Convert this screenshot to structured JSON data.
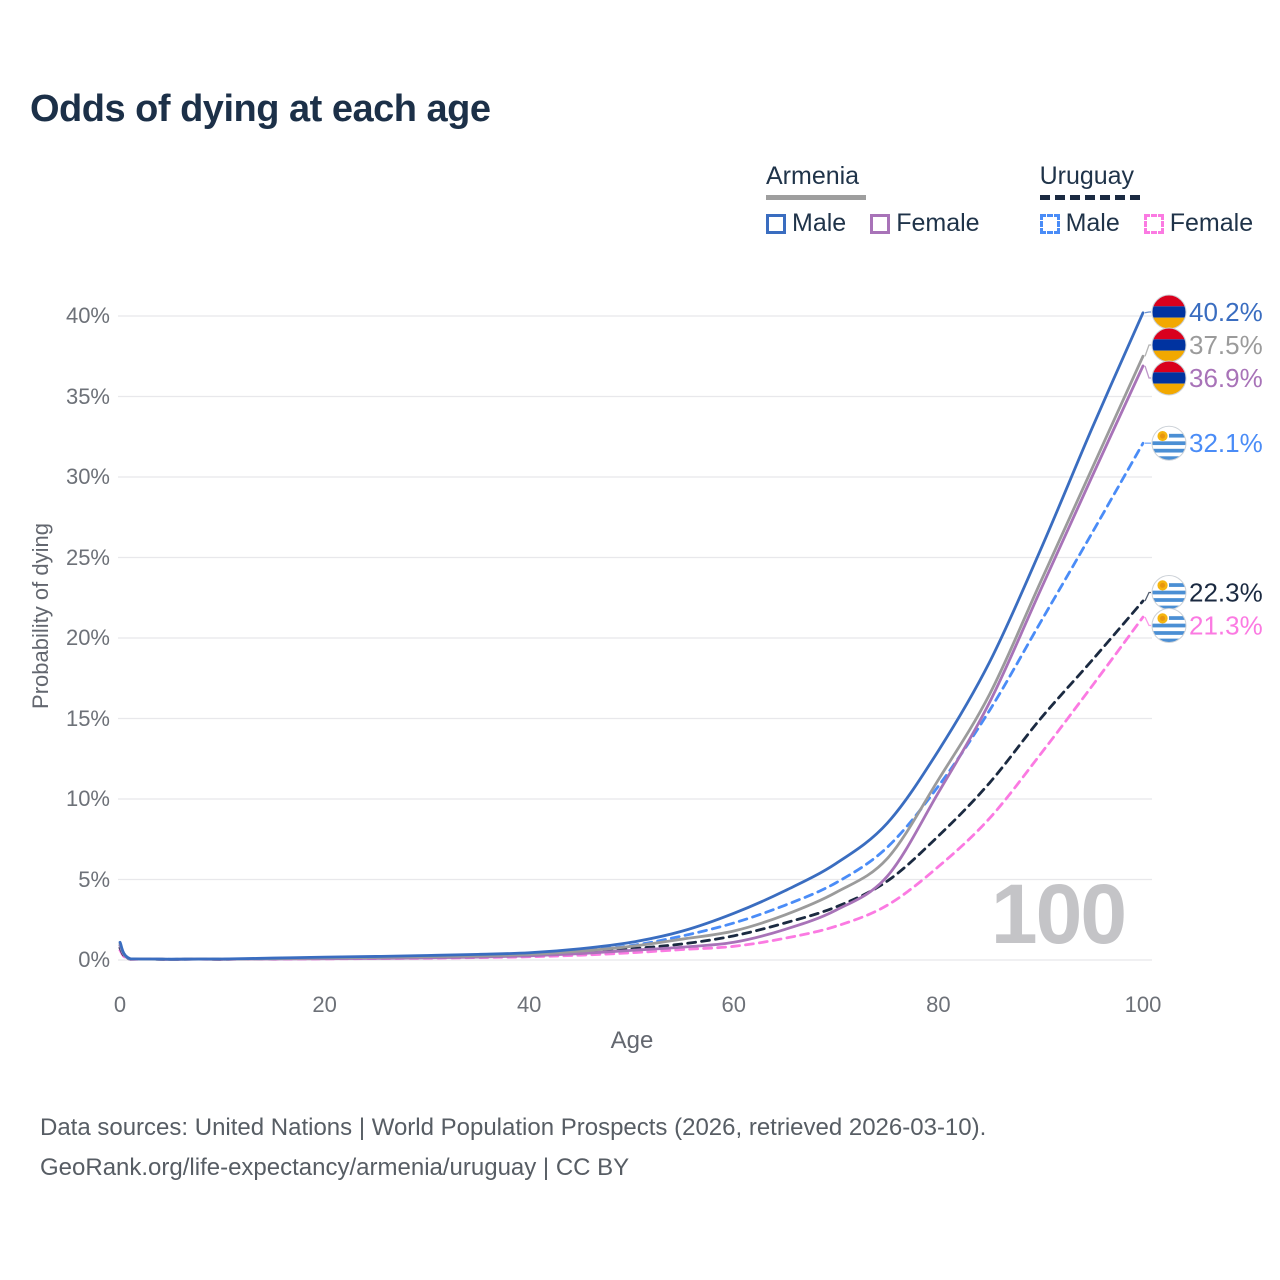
{
  "title": "Odds of dying at each age",
  "watermark_age": "100",
  "legend": {
    "armenia_label": "Armenia",
    "uruguay_label": "Uruguay",
    "armenia_male_label": "Male",
    "armenia_female_label": "Female",
    "uruguay_male_label": "Male",
    "uruguay_female_label": "Female"
  },
  "footer": {
    "line1": "Data sources: United Nations | World Population Prospects (2026, retrieved 2026-03-10).",
    "line2": "GeoRank.org/life-expectancy/armenia/uruguay | CC BY"
  },
  "colors": {
    "armenia_male": "#3a6dc0",
    "armenia_both": "#9b9b9b",
    "armenia_female": "#a873b8",
    "uruguay_male": "#4a8cf7",
    "uruguay_both": "#1b2a41",
    "uruguay_female": "#fb7ae2",
    "grid": "#e8e8eb",
    "tick_text": "#6d7178",
    "armenia_flag": [
      "#d9001d",
      "#0033a0",
      "#f2a800"
    ],
    "uruguay_flag": [
      "#ffffff",
      "#4b8fd4",
      "#f5b50f"
    ]
  },
  "chart_data": {
    "type": "line",
    "title": "Odds of dying at each age",
    "xlabel": "Age",
    "ylabel": "Probability of dying",
    "xlim": [
      0,
      100
    ],
    "ylim": [
      0,
      40
    ],
    "x_ticks": [
      0,
      20,
      40,
      60,
      80,
      100
    ],
    "x_tick_labels": [
      "0",
      "20",
      "40",
      "60",
      "80",
      "100"
    ],
    "y_ticks": [
      0,
      5,
      10,
      15,
      20,
      25,
      30,
      35,
      40
    ],
    "y_tick_labels": [
      "0%",
      "5%",
      "10%",
      "15%",
      "20%",
      "25%",
      "30%",
      "35%",
      "40%"
    ],
    "grid": "horizontal",
    "legend_position": "top-right",
    "ages": [
      0,
      1,
      5,
      10,
      15,
      20,
      25,
      30,
      35,
      40,
      45,
      50,
      55,
      60,
      65,
      70,
      75,
      80,
      85,
      90,
      95,
      100
    ],
    "series": [
      {
        "name": "Armenia Male",
        "country": "Armenia",
        "sex": "Male",
        "line_style": "solid",
        "color": "#3a6dc0",
        "flag": "armenia",
        "end_label": "40.2%",
        "values": [
          1.1,
          0.08,
          0.05,
          0.06,
          0.12,
          0.18,
          0.22,
          0.28,
          0.35,
          0.45,
          0.7,
          1.1,
          1.8,
          2.9,
          4.3,
          6.0,
          8.5,
          13.0,
          18.5,
          25.5,
          33.0,
          40.2
        ]
      },
      {
        "name": "Armenia Both sexes",
        "country": "Armenia",
        "sex": "Both",
        "line_style": "solid",
        "color": "#9b9b9b",
        "flag": "armenia",
        "end_label": "37.5%",
        "values": [
          1.0,
          0.07,
          0.04,
          0.05,
          0.09,
          0.13,
          0.16,
          0.2,
          0.26,
          0.35,
          0.55,
          0.85,
          1.3,
          1.8,
          2.8,
          4.2,
          6.3,
          11.2,
          16.5,
          23.5,
          30.5,
          37.5
        ]
      },
      {
        "name": "Armenia Female",
        "country": "Armenia",
        "sex": "Female",
        "line_style": "solid",
        "color": "#a873b8",
        "flag": "armenia",
        "end_label": "36.9%",
        "values": [
          0.9,
          0.06,
          0.03,
          0.04,
          0.06,
          0.08,
          0.1,
          0.13,
          0.18,
          0.26,
          0.4,
          0.6,
          0.8,
          1.1,
          1.9,
          3.1,
          5.2,
          10.4,
          16.0,
          23.0,
          30.0,
          36.9
        ]
      },
      {
        "name": "Uruguay Male",
        "country": "Uruguay",
        "sex": "Male",
        "line_style": "dashed",
        "color": "#4a8cf7",
        "flag": "uruguay",
        "end_label": "32.1%",
        "values": [
          0.9,
          0.06,
          0.04,
          0.05,
          0.1,
          0.15,
          0.18,
          0.22,
          0.28,
          0.38,
          0.6,
          0.9,
          1.5,
          2.3,
          3.4,
          4.8,
          7.0,
          10.8,
          15.5,
          21.0,
          26.5,
          32.1
        ]
      },
      {
        "name": "Uruguay Both sexes",
        "country": "Uruguay",
        "sex": "Both",
        "line_style": "dashed",
        "color": "#1b2a41",
        "flag": "uruguay",
        "end_label": "22.3%",
        "values": [
          0.75,
          0.05,
          0.03,
          0.04,
          0.08,
          0.12,
          0.15,
          0.18,
          0.22,
          0.3,
          0.45,
          0.7,
          1.0,
          1.5,
          2.3,
          3.3,
          4.9,
          7.7,
          11.0,
          15.0,
          18.6,
          22.3
        ]
      },
      {
        "name": "Uruguay Female",
        "country": "Uruguay",
        "sex": "Female",
        "line_style": "dashed",
        "color": "#fb7ae2",
        "flag": "uruguay",
        "end_label": "21.3%",
        "values": [
          0.6,
          0.04,
          0.02,
          0.03,
          0.05,
          0.07,
          0.09,
          0.11,
          0.15,
          0.2,
          0.3,
          0.45,
          0.65,
          0.85,
          1.35,
          2.1,
          3.4,
          5.8,
          8.8,
          12.8,
          17.0,
          21.3
        ]
      }
    ]
  }
}
